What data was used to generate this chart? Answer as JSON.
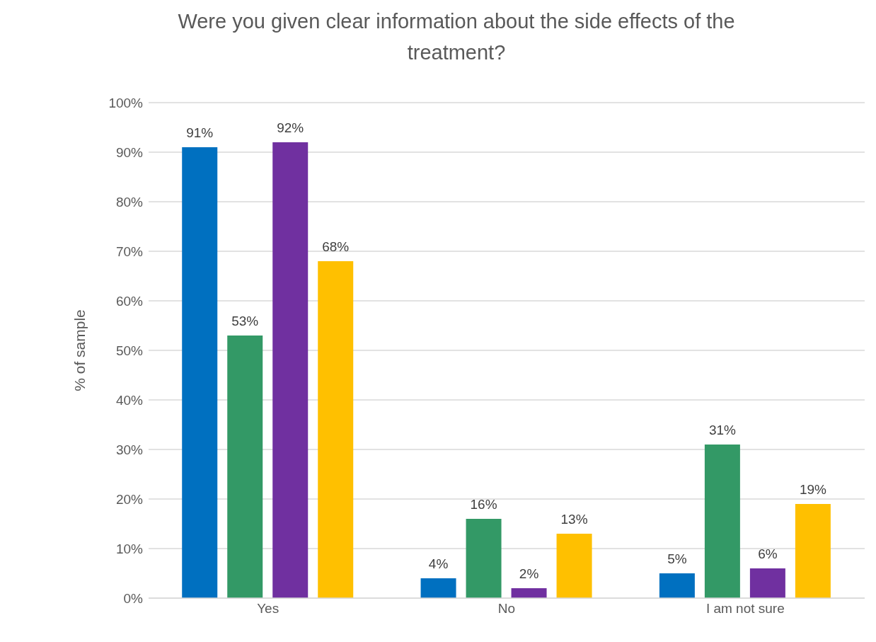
{
  "chart_data": {
    "type": "bar",
    "title": "Were you given clear information about the side effects of the treatment?",
    "ylabel": "% of sample",
    "categories": [
      "Yes",
      "No",
      "I am not sure"
    ],
    "series": [
      {
        "color": "#0070c0",
        "values": [
          91,
          4,
          5
        ],
        "value_labels": [
          "91%",
          "4%",
          "5%"
        ]
      },
      {
        "color": "#339966",
        "values": [
          53,
          16,
          31
        ],
        "value_labels": [
          "53%",
          "16%",
          "31%"
        ]
      },
      {
        "color": "#7030a0",
        "values": [
          92,
          2,
          6
        ],
        "value_labels": [
          "92%",
          "2%",
          "6%"
        ]
      },
      {
        "color": "#ffc000",
        "values": [
          68,
          13,
          19
        ],
        "value_labels": [
          "68%",
          "13%",
          "19%"
        ]
      }
    ],
    "ylim": [
      0,
      100
    ],
    "yticks": [
      {
        "value": 0,
        "label": "0%"
      },
      {
        "value": 10,
        "label": "10%"
      },
      {
        "value": 20,
        "label": "20%"
      },
      {
        "value": 30,
        "label": "30%"
      },
      {
        "value": 40,
        "label": "40%"
      },
      {
        "value": 50,
        "label": "50%"
      },
      {
        "value": 60,
        "label": "60%"
      },
      {
        "value": 70,
        "label": "70%"
      },
      {
        "value": 80,
        "label": "80%"
      },
      {
        "value": 90,
        "label": "90%"
      },
      {
        "value": 100,
        "label": "100%"
      }
    ],
    "grid": "y",
    "legend": false
  }
}
